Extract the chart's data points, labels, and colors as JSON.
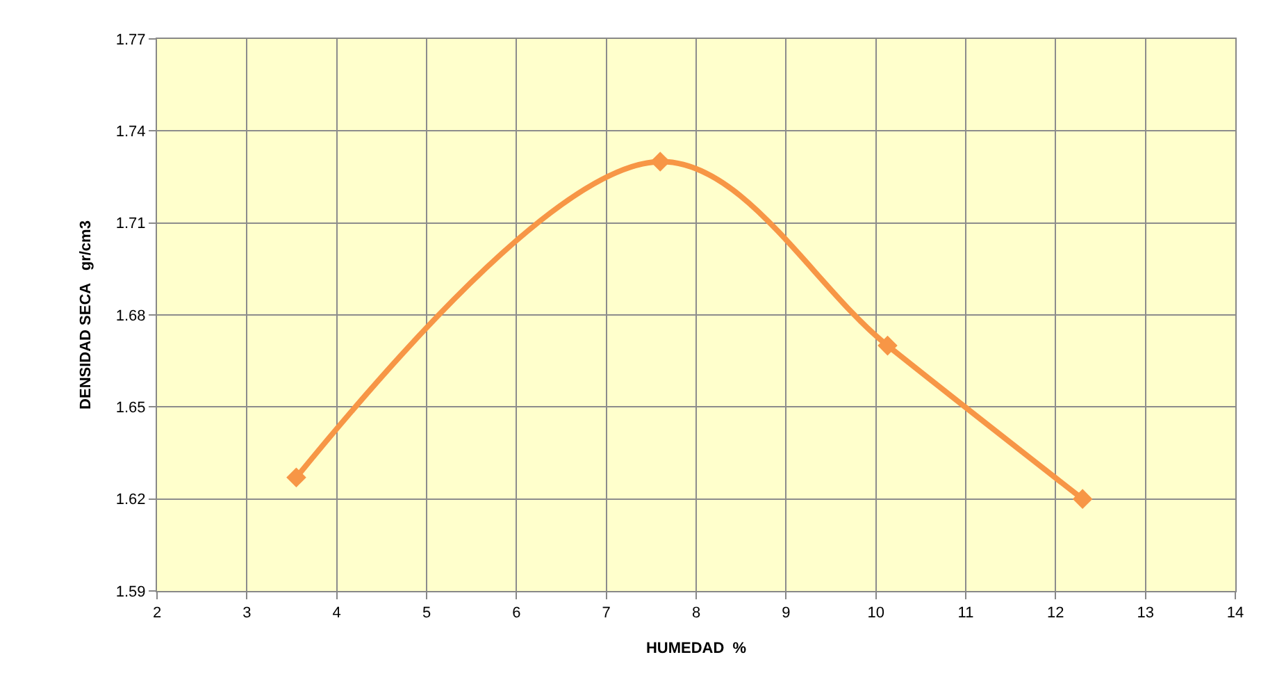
{
  "chart_data": {
    "type": "line",
    "xlabel": "HUMEDAD  %",
    "ylabel": "DENSIDAD SECA   gr/cm3",
    "x": [
      3.55,
      7.6,
      10.13,
      12.3
    ],
    "series": [
      {
        "color": "#f79646",
        "values": [
          1.627,
          1.73,
          1.67,
          1.62
        ]
      }
    ],
    "xlim": [
      2,
      14
    ],
    "xticks": [
      2,
      3,
      4,
      5,
      6,
      7,
      8,
      9,
      10,
      11,
      12,
      13,
      14
    ],
    "ylim": [
      1.59,
      1.77
    ],
    "yticks": [
      1.59,
      1.62,
      1.65,
      1.68,
      1.71,
      1.74,
      1.77
    ],
    "grid": true,
    "marker": "diamond",
    "line_style": "solid"
  }
}
